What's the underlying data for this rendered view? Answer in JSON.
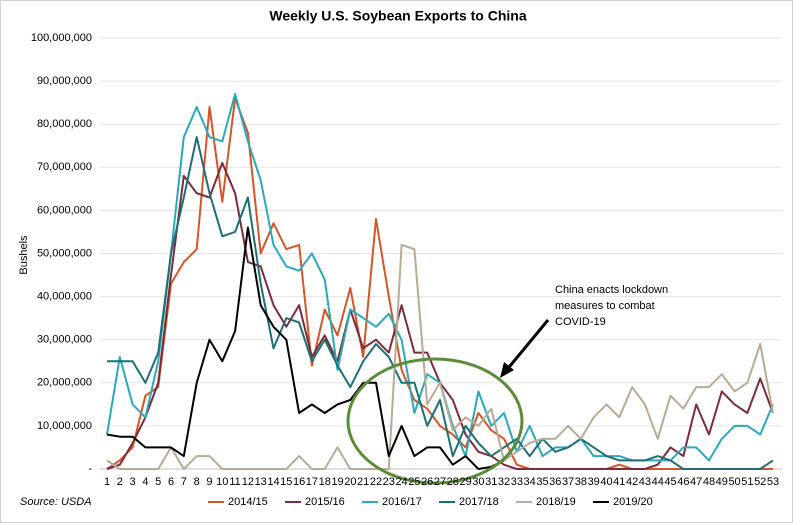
{
  "chart_data": {
    "type": "line",
    "title": "Weekly U.S. Soybean Exports to China",
    "y_label": "Bushels",
    "source": "Source: USDA",
    "annotation": [
      "China enacts lockdown",
      "measures to combat",
      "COVID-19"
    ],
    "categories": [
      "1",
      "2",
      "3",
      "4",
      "5",
      "6",
      "7",
      "8",
      "9",
      "10",
      "11",
      "12",
      "13",
      "14",
      "15",
      "16",
      "17",
      "18",
      "19",
      "20",
      "21",
      "22",
      "23",
      "24",
      "25",
      "26",
      "27",
      "28",
      "29",
      "30",
      "31",
      "32",
      "33",
      "34",
      "35",
      "36",
      "37",
      "38",
      "39",
      "40",
      "41",
      "42",
      "43",
      "44",
      "45",
      "46",
      "47",
      "48",
      "49",
      "50",
      "51",
      "52",
      "53"
    ],
    "ylim": [
      0,
      100000000
    ],
    "yticks": [
      {
        "value": 0,
        "label": "-"
      },
      {
        "value": 10000000,
        "label": "10,000,000"
      },
      {
        "value": 20000000,
        "label": "20,000,000"
      },
      {
        "value": 30000000,
        "label": "30,000,000"
      },
      {
        "value": 40000000,
        "label": "40,000,000"
      },
      {
        "value": 50000000,
        "label": "50,000,000"
      },
      {
        "value": 60000000,
        "label": "60,000,000"
      },
      {
        "value": 70000000,
        "label": "70,000,000"
      },
      {
        "value": 80000000,
        "label": "80,000,000"
      },
      {
        "value": 90000000,
        "label": "90,000,000"
      },
      {
        "value": 100000000,
        "label": "100,000,000"
      }
    ],
    "grid": true,
    "legend": "bottom",
    "series": [
      {
        "name": "2014/15",
        "color": "#d2562a",
        "values": [
          0,
          2000000,
          5000000,
          17000000,
          19000000,
          43000000,
          48000000,
          51000000,
          84000000,
          62000000,
          86000000,
          78000000,
          50000000,
          57000000,
          51000000,
          52000000,
          24000000,
          37000000,
          31000000,
          42000000,
          26000000,
          58000000,
          40000000,
          23000000,
          16000000,
          14000000,
          10000000,
          8000000,
          5000000,
          13000000,
          9000000,
          7000000,
          1000000,
          0,
          0,
          0,
          0,
          0,
          0,
          0,
          1000000,
          0,
          0,
          0,
          0,
          0,
          0,
          0,
          0,
          0,
          0,
          0,
          0
        ]
      },
      {
        "name": "2015/16",
        "color": "#7b2c3b",
        "values": [
          0,
          1000000,
          6000000,
          12000000,
          20000000,
          45000000,
          68000000,
          64000000,
          63000000,
          71000000,
          64000000,
          48000000,
          47000000,
          38000000,
          33000000,
          38000000,
          26000000,
          31000000,
          25000000,
          37000000,
          28000000,
          30000000,
          27000000,
          38000000,
          27000000,
          27000000,
          20000000,
          16000000,
          8000000,
          4000000,
          3000000,
          1000000,
          0,
          0,
          0,
          0,
          0,
          0,
          0,
          0,
          0,
          0,
          0,
          1000000,
          5000000,
          3000000,
          15000000,
          8000000,
          18000000,
          15000000,
          13000000,
          21000000,
          13000000
        ]
      },
      {
        "name": "2016/17",
        "color": "#2aa9b8",
        "values": [
          8000000,
          26000000,
          15000000,
          12000000,
          25000000,
          50000000,
          77000000,
          84000000,
          77000000,
          76000000,
          87000000,
          76000000,
          67000000,
          52000000,
          47000000,
          46000000,
          50000000,
          44000000,
          23000000,
          37000000,
          35000000,
          33000000,
          36000000,
          30000000,
          13000000,
          22000000,
          20000000,
          10000000,
          3000000,
          18000000,
          10000000,
          13000000,
          4000000,
          10000000,
          3000000,
          5000000,
          5000000,
          7000000,
          3000000,
          3000000,
          3000000,
          2000000,
          2000000,
          2000000,
          2000000,
          5000000,
          5000000,
          2000000,
          7000000,
          10000000,
          10000000,
          8000000,
          15000000
        ]
      },
      {
        "name": "2017/18",
        "color": "#1e6f75",
        "values": [
          25000000,
          25000000,
          25000000,
          20000000,
          27000000,
          50000000,
          63000000,
          77000000,
          64000000,
          54000000,
          55000000,
          63000000,
          43000000,
          28000000,
          35000000,
          34000000,
          25000000,
          30000000,
          24000000,
          19000000,
          25000000,
          29000000,
          26000000,
          20000000,
          20000000,
          10000000,
          16000000,
          3000000,
          10000000,
          6000000,
          3000000,
          5000000,
          7000000,
          3000000,
          7000000,
          4000000,
          5000000,
          7000000,
          5000000,
          3000000,
          2000000,
          2000000,
          2000000,
          3000000,
          2000000,
          0,
          0,
          0,
          0,
          0,
          0,
          0,
          2000000
        ]
      },
      {
        "name": "2018/19",
        "color": "#b8ab96",
        "values": [
          2000000,
          0,
          0,
          0,
          0,
          5000000,
          0,
          3000000,
          3000000,
          0,
          0,
          0,
          0,
          0,
          0,
          3000000,
          0,
          0,
          5000000,
          0,
          0,
          0,
          0,
          52000000,
          51000000,
          15000000,
          20000000,
          9000000,
          12000000,
          10000000,
          14000000,
          2000000,
          4000000,
          6000000,
          7000000,
          7000000,
          10000000,
          7000000,
          12000000,
          15000000,
          12000000,
          19000000,
          15000000,
          7000000,
          17000000,
          14000000,
          19000000,
          19000000,
          22000000,
          18000000,
          20000000,
          29000000,
          13000000
        ]
      },
      {
        "name": "2019/20",
        "color": "#000000",
        "values": [
          8000000,
          7500000,
          7500000,
          5000000,
          5000000,
          5000000,
          3000000,
          20000000,
          30000000,
          25000000,
          32000000,
          56000000,
          38000000,
          33000000,
          30000000,
          13000000,
          15000000,
          13000000,
          15000000,
          16000000,
          20000000,
          20000000,
          3000000,
          10000000,
          3000000,
          5000000,
          5000000,
          1000000,
          3000000,
          0,
          500000,
          2000000,
          null,
          null,
          null,
          null,
          null,
          null,
          null,
          null,
          null,
          null,
          null,
          null,
          null,
          null,
          null,
          null,
          null,
          null,
          null,
          null,
          null
        ]
      }
    ]
  }
}
